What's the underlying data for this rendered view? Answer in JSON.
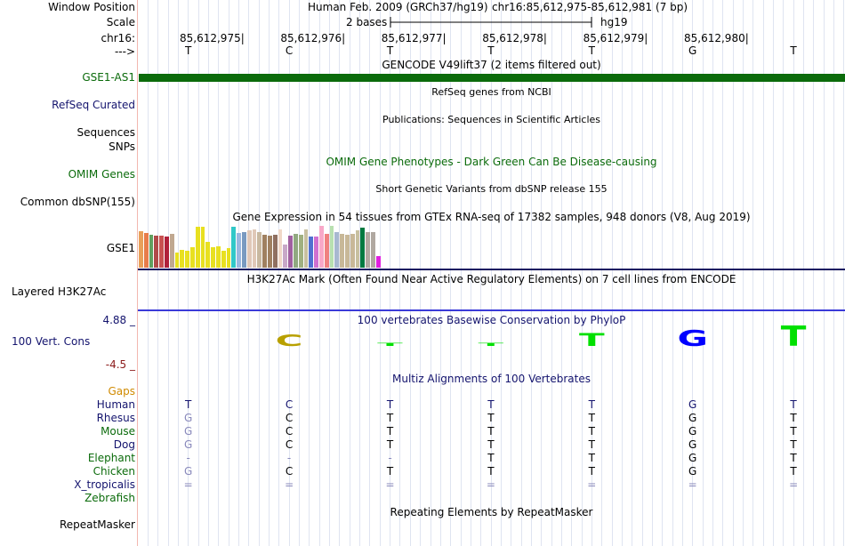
{
  "header": {
    "window_position_label": "Window Position",
    "scale_label": "Scale",
    "chrom_label": "chr16:",
    "strand_label": "--->",
    "assembly": "Human Feb. 2009 (GRCh37/hg19)",
    "position": "chr16:85,612,975-85,612,981 (7 bp)",
    "scale_text": "2 bases",
    "db": "hg19",
    "coords": [
      "85,612,975",
      "85,612,976",
      "85,612,977",
      "85,612,978",
      "85,612,979",
      "85,612,980"
    ],
    "bases": [
      "T",
      "C",
      "T",
      "T",
      "T",
      "G",
      "T"
    ]
  },
  "tracks": {
    "gencode": {
      "label": "GSE1-AS1",
      "title": "GENCODE V49lift37 (2 items filtered out)",
      "color": "#0b6b0b"
    },
    "refseq": {
      "label": "RefSeq Curated",
      "title": "RefSeq genes from NCBI"
    },
    "sequences": {
      "label": "Sequences",
      "title": "Publications: Sequences in Scientific Articles"
    },
    "snps": {
      "label": "SNPs"
    },
    "omim": {
      "label": "OMIM Genes",
      "title": "OMIM Gene Phenotypes - Dark Green Can Be Disease-causing"
    },
    "dbsnp": {
      "label": "Common dbSNP(155)",
      "title": "Short Genetic Variants from dbSNP release 155"
    },
    "gtex": {
      "label": "GSE1",
      "title": "Gene Expression in 54 tissues from GTEx RNA-seq of 17382 samples, 948 donors (V8, Aug 2019)",
      "bars": [
        {
          "v": 0.85,
          "c": "#e8a05a"
        },
        {
          "v": 0.82,
          "c": "#e87c4a"
        },
        {
          "v": 0.78,
          "c": "#60a060"
        },
        {
          "v": 0.74,
          "c": "#b04a4a"
        },
        {
          "v": 0.75,
          "c": "#c85050"
        },
        {
          "v": 0.72,
          "c": "#b0203a"
        },
        {
          "v": 0.8,
          "c": "#c0a890"
        },
        {
          "v": 0.35,
          "c": "#e8e020"
        },
        {
          "v": 0.42,
          "c": "#e8e020"
        },
        {
          "v": 0.4,
          "c": "#e8e020"
        },
        {
          "v": 0.48,
          "c": "#e8e020"
        },
        {
          "v": 0.95,
          "c": "#e8e020"
        },
        {
          "v": 0.95,
          "c": "#e8e020"
        },
        {
          "v": 0.6,
          "c": "#e8e020"
        },
        {
          "v": 0.48,
          "c": "#e8e020"
        },
        {
          "v": 0.5,
          "c": "#e8e020"
        },
        {
          "v": 0.4,
          "c": "#e8e020"
        },
        {
          "v": 0.45,
          "c": "#e8e020"
        },
        {
          "v": 0.96,
          "c": "#30c8c8"
        },
        {
          "v": 0.82,
          "c": "#9ab8e0"
        },
        {
          "v": 0.84,
          "c": "#7a9ac0"
        },
        {
          "v": 0.88,
          "c": "#e0c8b8"
        },
        {
          "v": 0.9,
          "c": "#e0c8b8"
        },
        {
          "v": 0.84,
          "c": "#c8b8a0"
        },
        {
          "v": 0.78,
          "c": "#a08060"
        },
        {
          "v": 0.76,
          "c": "#a08060"
        },
        {
          "v": 0.78,
          "c": "#907060"
        },
        {
          "v": 0.9,
          "c": "#f0d8c8"
        },
        {
          "v": 0.55,
          "c": "#c8a8c8"
        },
        {
          "v": 0.75,
          "c": "#a060a0"
        },
        {
          "v": 0.8,
          "c": "#90a880"
        },
        {
          "v": 0.78,
          "c": "#a0b080"
        },
        {
          "v": 0.9,
          "c": "#c8c0a0"
        },
        {
          "v": 0.72,
          "c": "#5070d0"
        },
        {
          "v": 0.72,
          "c": "#d070d0"
        },
        {
          "v": 0.98,
          "c": "#f8a8c8"
        },
        {
          "v": 0.8,
          "c": "#f08080"
        },
        {
          "v": 0.98,
          "c": "#b8e0b0"
        },
        {
          "v": 0.84,
          "c": "#a8b8d0"
        },
        {
          "v": 0.8,
          "c": "#c8b898"
        },
        {
          "v": 0.78,
          "c": "#c8b898"
        },
        {
          "v": 0.8,
          "c": "#c8b898"
        },
        {
          "v": 0.88,
          "c": "#c8c0a0"
        },
        {
          "v": 0.94,
          "c": "#007a40"
        },
        {
          "v": 0.84,
          "c": "#b0a8a0"
        },
        {
          "v": 0.84,
          "c": "#b0a8a0"
        },
        {
          "v": 0.28,
          "c": "#e020e0"
        }
      ]
    },
    "h3k27ac": {
      "label": "Layered H3K27Ac",
      "title": "H3K27Ac Mark (Often Found Near Active Regulatory Elements) on 7 cell lines from ENCODE"
    },
    "cons": {
      "label": "100 Vert. Cons",
      "max": "4.88 _",
      "min": "-4.5 _",
      "title": "100 vertebrates Basewise Conservation by PhyloP",
      "scores": [
        0.0,
        1.3,
        0.2,
        0.3,
        1.4,
        1.8,
        2.3
      ],
      "logo_colors": [
        "#00c000",
        "#b8a000",
        "#00e000",
        "#00e000",
        "#00e000",
        "#0000ff",
        "#00e000"
      ]
    },
    "multiz": {
      "title": "Multiz Alignments of 100 Vertebrates",
      "gaps_label": "Gaps",
      "species": [
        {
          "name": "Human",
          "color": "#14146e",
          "bases": [
            "T",
            "C",
            "T",
            "T",
            "T",
            "G",
            "T"
          ]
        },
        {
          "name": "Rhesus",
          "color": "#14146e",
          "bases": [
            "G",
            "C",
            "T",
            "T",
            "T",
            "G",
            "T"
          ]
        },
        {
          "name": "Mouse",
          "color": "#0b6b0b",
          "bases": [
            "G",
            "C",
            "T",
            "T",
            "T",
            "G",
            "T"
          ]
        },
        {
          "name": "Dog",
          "color": "#14146e",
          "bases": [
            "G",
            "C",
            "T",
            "T",
            "T",
            "G",
            "T"
          ]
        },
        {
          "name": "Elephant",
          "color": "#0b6b0b",
          "bases": [
            "-",
            "-",
            "-",
            "T",
            "T",
            "G",
            "T"
          ]
        },
        {
          "name": "Chicken",
          "color": "#0b6b0b",
          "bases": [
            "G",
            "C",
            "T",
            "T",
            "T",
            "G",
            "T"
          ]
        },
        {
          "name": "X_tropicalis",
          "color": "#14146e",
          "bases": [
            "=",
            "=",
            "=",
            "=",
            "=",
            "=",
            "="
          ]
        },
        {
          "name": "Zebrafish",
          "color": "#0b6b0b",
          "bases": [
            "",
            "",
            "",
            "",
            "",
            "",
            ""
          ]
        }
      ]
    },
    "repeatmasker": {
      "label": "RepeatMasker",
      "title": "Repeating Elements by RepeatMasker"
    }
  }
}
